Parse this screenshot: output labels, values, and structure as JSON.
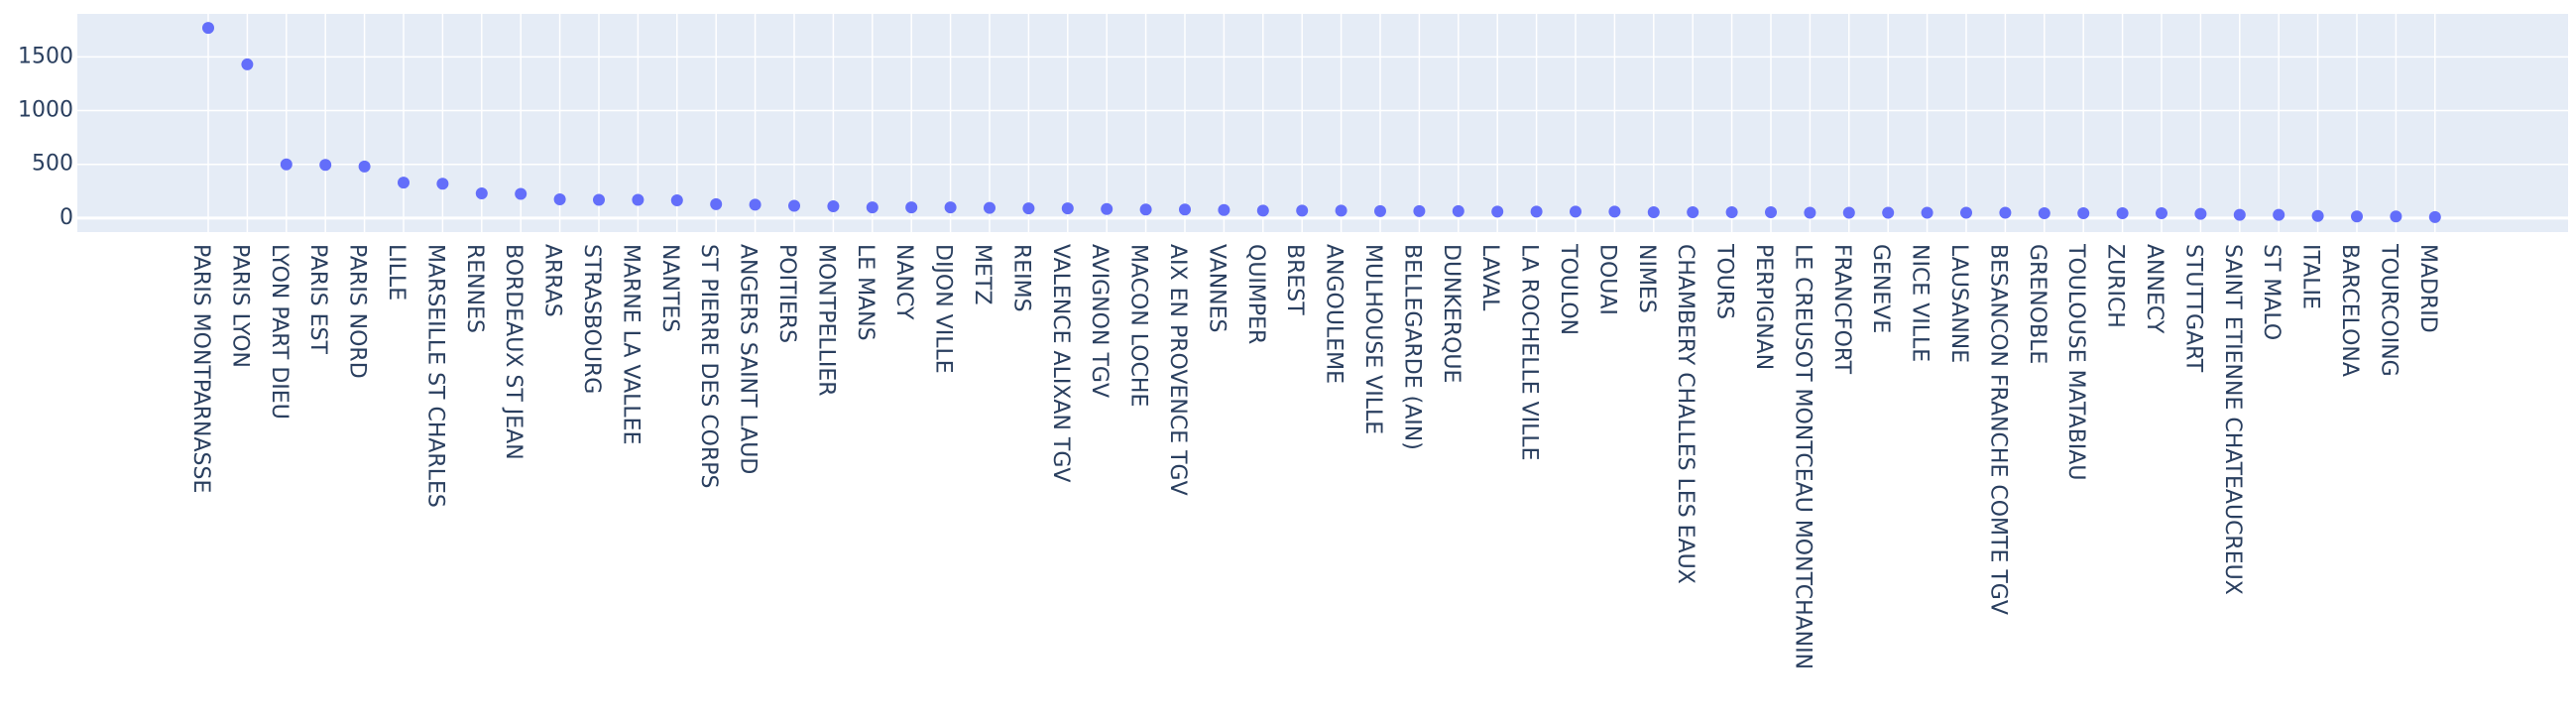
{
  "colors": {
    "plot_bg": "#E5ECF6",
    "grid": "#ffffff",
    "marker": "#636EFA",
    "text": "#2a3f5f"
  },
  "chart_data": {
    "type": "scatter",
    "title": "",
    "xlabel": "",
    "ylabel": "",
    "grid": true,
    "ylim": [
      -130,
      1900
    ],
    "yticks": [
      0,
      500,
      1000,
      1500
    ],
    "categories": [
      "PARIS MONTPARNASSE",
      "PARIS LYON",
      "LYON PART DIEU",
      "PARIS EST",
      "PARIS NORD",
      "LILLE",
      "MARSEILLE ST CHARLES",
      "RENNES",
      "BORDEAUX ST JEAN",
      "ARRAS",
      "STRASBOURG",
      "MARNE LA VALLEE",
      "NANTES",
      "ST PIERRE DES CORPS",
      "ANGERS SAINT LAUD",
      "POITIERS",
      "MONTPELLIER",
      "LE MANS",
      "NANCY",
      "DIJON VILLE",
      "METZ",
      "REIMS",
      "VALENCE ALIXAN TGV",
      "AVIGNON TGV",
      "MACON LOCHE",
      "AIX EN PROVENCE TGV",
      "VANNES",
      "QUIMPER",
      "BREST",
      "ANGOULEME",
      "MULHOUSE VILLE",
      "BELLEGARDE (AIN)",
      "DUNKERQUE",
      "LAVAL",
      "LA ROCHELLE VILLE",
      "TOULON",
      "DOUAI",
      "NIMES",
      "CHAMBERY CHALLES LES EAUX",
      "TOURS",
      "PERPIGNAN",
      "LE CREUSOT MONTCEAU MONTCHANIN",
      "FRANCFORT",
      "GENEVE",
      "NICE VILLE",
      "LAUSANNE",
      "BESANCON FRANCHE COMTE TGV",
      "GRENOBLE",
      "TOULOUSE MATABIAU",
      "ZURICH",
      "ANNECY",
      "STUTTGART",
      "SAINT ETIENNE CHATEAUCREUX",
      "ST MALO",
      "ITALIE",
      "BARCELONA",
      "TOURCOING",
      "MADRID"
    ],
    "values": [
      1770,
      1430,
      500,
      495,
      480,
      330,
      320,
      230,
      225,
      175,
      170,
      170,
      165,
      130,
      125,
      115,
      110,
      100,
      100,
      100,
      95,
      90,
      90,
      85,
      80,
      80,
      75,
      70,
      70,
      70,
      65,
      65,
      65,
      60,
      60,
      60,
      60,
      55,
      55,
      55,
      55,
      50,
      50,
      50,
      50,
      50,
      50,
      45,
      45,
      45,
      45,
      40,
      30,
      30,
      20,
      15,
      15,
      10
    ]
  }
}
